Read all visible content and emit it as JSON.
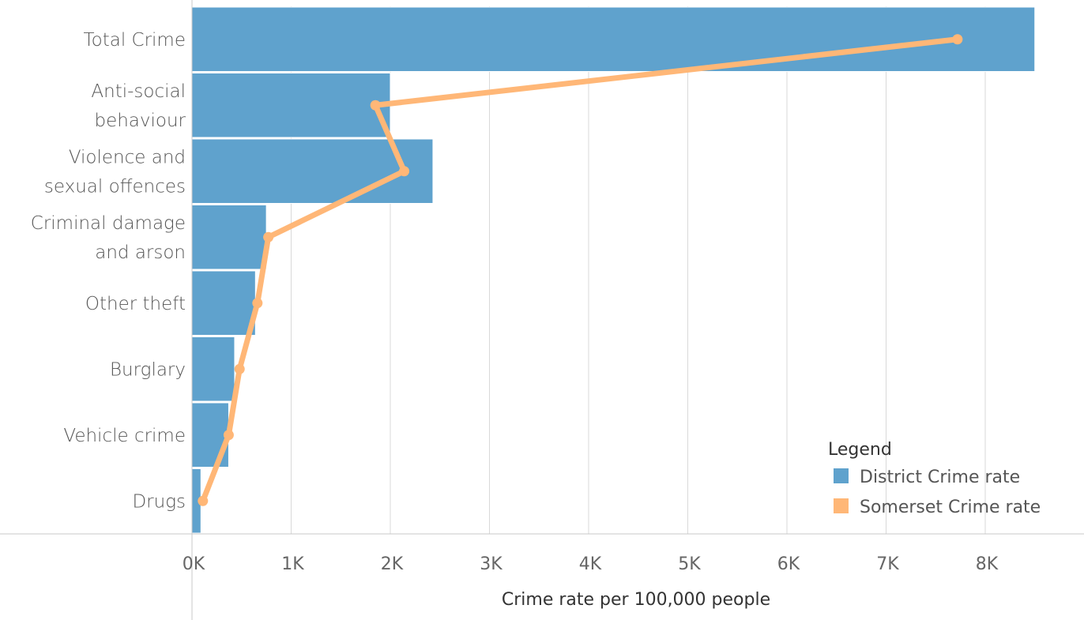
{
  "chart_data": {
    "type": "bar",
    "orientation": "horizontal",
    "categories": [
      [
        "Total Crime"
      ],
      [
        "Anti-social",
        "behaviour"
      ],
      [
        "Violence and",
        "sexual offences"
      ],
      [
        "Criminal damage",
        "and arson"
      ],
      [
        "Other theft"
      ],
      [
        "Burglary"
      ],
      [
        "Vehicle crime"
      ],
      [
        "Drugs"
      ]
    ],
    "series": [
      {
        "name": "District Crime rate",
        "kind": "bar",
        "color": "#5fa2cd",
        "values": [
          8500,
          2000,
          2430,
          750,
          640,
          430,
          370,
          90
        ]
      },
      {
        "name": "Somerset Crime rate",
        "kind": "line",
        "color": "#ffb777",
        "values": [
          7720,
          1850,
          2140,
          770,
          660,
          480,
          370,
          110
        ]
      }
    ],
    "xlabel": "Crime rate per 100,000 people",
    "xlim": [
      0,
      8800
    ],
    "xticks": [
      0,
      1000,
      2000,
      3000,
      4000,
      5000,
      6000,
      7000,
      8000
    ],
    "xtick_labels": [
      "0K",
      "1K",
      "2K",
      "3K",
      "4K",
      "5K",
      "6K",
      "7K",
      "8K"
    ],
    "grid": true,
    "legend": {
      "title": "Legend",
      "position": "bottom-right"
    }
  }
}
